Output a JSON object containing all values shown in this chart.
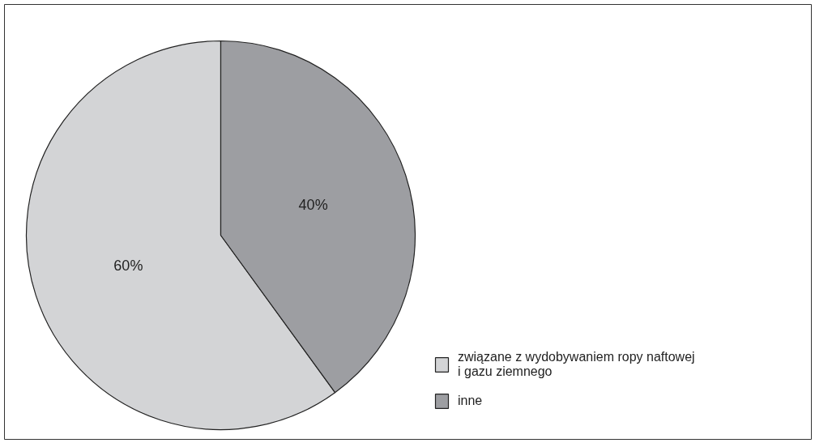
{
  "chart_data": {
    "type": "pie",
    "categories": [
      "związane z wydobywaniem ropy naftowej i gazu ziemnego",
      "inne"
    ],
    "values": [
      60,
      40
    ],
    "colors": [
      "#d3d4d6",
      "#9d9ea2"
    ],
    "value_labels": [
      "60%",
      "40%"
    ],
    "legend": "bottom right"
  }
}
